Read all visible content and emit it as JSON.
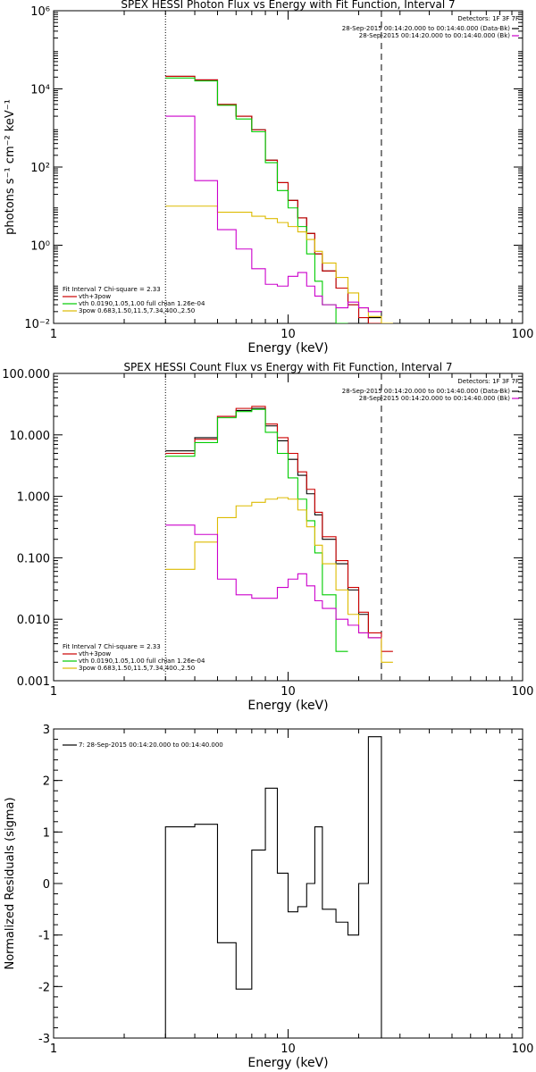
{
  "chart_data": [
    {
      "type": "line",
      "title": "SPEX HESSI Photon Flux vs Energy with Fit Function, Interval 7",
      "xlabel": "Energy (keV)",
      "ylabel": "photons s⁻¹ cm⁻² keV⁻¹",
      "xscale": "log",
      "yscale": "log",
      "xlim": [
        1,
        100
      ],
      "ylim": [
        0.01,
        1000000
      ],
      "xticks": [
        {
          "v": 1,
          "label": "1"
        },
        {
          "v": 10,
          "label": "10"
        },
        {
          "v": 100,
          "label": "100"
        }
      ],
      "yticks": [
        {
          "v": 0.01,
          "label": "10⁻²"
        },
        {
          "v": 1,
          "label": "10⁰"
        },
        {
          "v": 100,
          "label": "10²"
        },
        {
          "v": 10000,
          "label": "10⁴"
        },
        {
          "v": 1000000,
          "label": "10⁶"
        }
      ],
      "vlines": [
        {
          "x": 3.0,
          "style": "dotted"
        },
        {
          "x": 25.0,
          "style": "dashed"
        }
      ],
      "legend_topright": {
        "title": "Detectors: 1F 3F 7F",
        "entries": [
          {
            "text": "28-Sep-2015 00:14:20.000 to 00:14:40.000 (Data-Bk)",
            "color": "#000000"
          },
          {
            "text": "28-Sep-2015 00:14:20.000 to 00:14:40.000 (Bk)",
            "color": "#cc00cc"
          }
        ]
      },
      "legend_bottomleft": {
        "title": "Fit Interval 7   Chi-square = 2.33",
        "entries": [
          {
            "text": "vth+3pow",
            "color": "#cc0000"
          },
          {
            "text": "vth 0.0190,1.05,1.00  full chian 1.26e-04",
            "color": "#00cc00"
          },
          {
            "text": "3pow 0.683,1.50,11.5,7.34,400.,2.50",
            "color": "#ddbb00"
          }
        ]
      },
      "series": [
        {
          "color": "#000000",
          "edges": [
            3,
            4,
            5,
            6,
            7,
            8,
            9,
            10,
            11,
            12,
            13,
            14,
            16,
            18,
            20,
            22,
            25
          ],
          "values": [
            21000,
            17000,
            4000,
            2000,
            900,
            150,
            40,
            14,
            5,
            2,
            0.6,
            0.22,
            0.08,
            0.03,
            0.01,
            0.014
          ]
        },
        {
          "color": "#cc0000",
          "edges": [
            3,
            4,
            5,
            6,
            7,
            8,
            9,
            10,
            11,
            12,
            13,
            14,
            16,
            18,
            20,
            22,
            25,
            28
          ],
          "values": [
            21000,
            17000,
            4000,
            2000,
            900,
            150,
            40,
            14,
            5,
            2,
            0.6,
            0.22,
            0.08,
            0.03,
            0.014,
            0.01,
            0.006
          ]
        },
        {
          "color": "#00cc00",
          "edges": [
            3,
            4,
            5,
            6,
            7,
            8,
            9,
            10,
            11,
            12,
            13,
            14,
            16,
            18
          ],
          "values": [
            19000,
            16000,
            3800,
            1700,
            800,
            130,
            25,
            9,
            3,
            0.6,
            0.12,
            0.03,
            0.008
          ]
        },
        {
          "color": "#ddbb00",
          "edges": [
            3,
            4,
            5,
            6,
            7,
            8,
            9,
            10,
            11,
            12,
            13,
            14,
            16,
            18,
            20,
            22,
            25,
            28
          ],
          "values": [
            10,
            10,
            7,
            7,
            5.5,
            4.8,
            3.8,
            3,
            2.2,
            1.4,
            0.7,
            0.35,
            0.15,
            0.06,
            0.025,
            0.015,
            0.008
          ]
        },
        {
          "color": "#cc00cc",
          "edges": [
            3,
            4,
            5,
            6,
            7,
            8,
            9,
            10,
            11,
            12,
            13,
            14,
            16,
            18,
            20,
            22,
            25
          ],
          "values": [
            2000,
            45,
            2.5,
            0.8,
            0.25,
            0.1,
            0.09,
            0.16,
            0.2,
            0.09,
            0.05,
            0.03,
            0.025,
            0.035,
            0.025,
            0.02
          ]
        }
      ]
    },
    {
      "type": "line",
      "title": "SPEX HESSI Count Flux vs Energy with Fit Function, Interval 7",
      "xlabel": "Energy (keV)",
      "ylabel": "",
      "xscale": "log",
      "yscale": "log",
      "xlim": [
        1,
        100
      ],
      "ylim": [
        0.001,
        100
      ],
      "xticks": [
        {
          "v": 1,
          "label": "1"
        },
        {
          "v": 10,
          "label": "10"
        },
        {
          "v": 100,
          "label": "100"
        }
      ],
      "yticks": [
        {
          "v": 0.001,
          "label": "0.001"
        },
        {
          "v": 0.01,
          "label": "0.010"
        },
        {
          "v": 0.1,
          "label": "0.100"
        },
        {
          "v": 1,
          "label": "1.000"
        },
        {
          "v": 10,
          "label": "10.000"
        },
        {
          "v": 100,
          "label": "100.000"
        }
      ],
      "vlines": [
        {
          "x": 3.0,
          "style": "dotted"
        },
        {
          "x": 25.0,
          "style": "dashed"
        }
      ],
      "legend_topright": {
        "title": "Detectors: 1F 3F 7F",
        "entries": [
          {
            "text": "28-Sep-2015 00:14:20.000 to 00:14:40.000 (Data-Bk)",
            "color": "#000000"
          },
          {
            "text": "28-Sep-2015 00:14:20.000 to 00:14:40.000 (Bk)",
            "color": "#cc00cc"
          }
        ]
      },
      "legend_bottomleft": {
        "title": "Fit Interval 7   Chi-square = 2.33",
        "entries": [
          {
            "text": "vth+3pow",
            "color": "#cc0000"
          },
          {
            "text": "vth 0.0190,1.05,1.00  full chian 1.26e-04",
            "color": "#00cc00"
          },
          {
            "text": "3pow 0.683,1.50,11.5,7.34,400.,2.50",
            "color": "#ddbb00"
          }
        ]
      },
      "series": [
        {
          "color": "#000000",
          "edges": [
            3,
            4,
            5,
            6,
            7,
            8,
            9,
            10,
            11,
            12,
            13,
            14,
            16,
            18,
            20,
            22,
            25
          ],
          "values": [
            5.5,
            9,
            20,
            25,
            27,
            14,
            8,
            4,
            2.2,
            1.1,
            0.5,
            0.2,
            0.08,
            0.03,
            0.012,
            0.005
          ]
        },
        {
          "color": "#cc0000",
          "edges": [
            3,
            4,
            5,
            6,
            7,
            8,
            9,
            10,
            11,
            12,
            13,
            14,
            16,
            18,
            20,
            22,
            25,
            28
          ],
          "values": [
            5,
            8.5,
            20,
            27,
            29,
            15,
            9,
            5,
            2.5,
            1.3,
            0.55,
            0.22,
            0.09,
            0.033,
            0.013,
            0.006,
            0.003
          ]
        },
        {
          "color": "#00cc00",
          "edges": [
            3,
            4,
            5,
            6,
            7,
            8,
            9,
            10,
            11,
            12,
            13,
            14,
            16,
            18
          ],
          "values": [
            4.5,
            7.5,
            19,
            24,
            26,
            11,
            5,
            2,
            0.9,
            0.4,
            0.12,
            0.025,
            0.003
          ]
        },
        {
          "color": "#ddbb00",
          "edges": [
            3,
            4,
            5,
            6,
            7,
            8,
            9,
            10,
            11,
            12,
            13,
            14,
            16,
            18,
            20,
            22,
            25,
            28
          ],
          "values": [
            0.065,
            0.18,
            0.45,
            0.7,
            0.8,
            0.9,
            0.95,
            0.9,
            0.6,
            0.32,
            0.16,
            0.08,
            0.03,
            0.012,
            0.006,
            0.005,
            0.002
          ]
        },
        {
          "color": "#cc00cc",
          "edges": [
            3,
            4,
            5,
            6,
            7,
            8,
            9,
            10,
            11,
            12,
            13,
            14,
            16,
            18,
            20,
            22,
            25
          ],
          "values": [
            0.34,
            0.24,
            0.045,
            0.025,
            0.022,
            0.022,
            0.033,
            0.045,
            0.055,
            0.035,
            0.02,
            0.015,
            0.01,
            0.008,
            0.006,
            0.005
          ]
        }
      ]
    },
    {
      "type": "line",
      "title": "",
      "xlabel": "Energy (keV)",
      "ylabel": "Normalized Residuals (sigma)",
      "xscale": "log",
      "yscale": "linear",
      "xlim": [
        1,
        100
      ],
      "ylim": [
        -3,
        3
      ],
      "xticks": [
        {
          "v": 1,
          "label": "1"
        },
        {
          "v": 10,
          "label": "10"
        },
        {
          "v": 100,
          "label": "100"
        }
      ],
      "yticks": [
        {
          "v": -3,
          "label": "-3"
        },
        {
          "v": -2,
          "label": "-2"
        },
        {
          "v": -1,
          "label": "-1"
        },
        {
          "v": 0,
          "label": "0"
        },
        {
          "v": 1,
          "label": "1"
        },
        {
          "v": 2,
          "label": "2"
        },
        {
          "v": 3,
          "label": "3"
        }
      ],
      "vlines": [],
      "legend_topleft": {
        "entries": [
          {
            "text": "7: 28-Sep-2015 00:14:20.000 to 00:14:40.000",
            "color": "#000000"
          }
        ]
      },
      "series": [
        {
          "color": "#000000",
          "edges": [
            3,
            4,
            5,
            6,
            7,
            8,
            9,
            10,
            11,
            12,
            13,
            14,
            16,
            18,
            20,
            22,
            25
          ],
          "values": [
            1.1,
            1.15,
            -1.15,
            -2.05,
            0.65,
            1.85,
            0.2,
            -0.55,
            -0.45,
            0.0,
            1.1,
            -0.5,
            -0.75,
            -1.0,
            0.0,
            2.85
          ],
          "drop_to": -3
        }
      ]
    }
  ]
}
